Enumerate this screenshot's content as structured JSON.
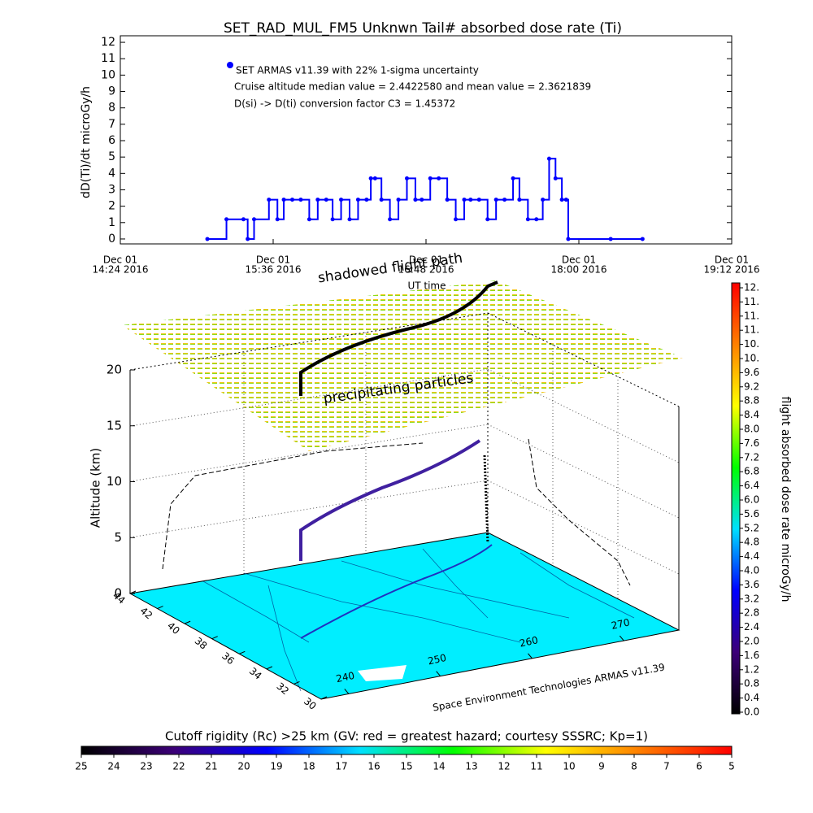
{
  "chart_data": [
    {
      "type": "line",
      "title": "SET_RAD_MUL_FM5 Unknwn Tail#  absorbed dose rate (Ti)",
      "y_label": "dD(Ti)/dt microGy/h",
      "x_label": "UT time",
      "annotations": [
        "Cruise altitude median value = 2.4422580 and mean value = 2.3621839",
        "D(si) -> D(ti) conversion factor C3 = 1.45372"
      ],
      "x": [
        "15:05",
        "15:14",
        "15:22",
        "15:24",
        "15:27",
        "15:34",
        "15:38",
        "15:41",
        "15:45",
        "15:49",
        "15:53",
        "15:57",
        "16:01",
        "16:04",
        "16:08",
        "16:12",
        "16:16",
        "16:20",
        "16:22",
        "16:24",
        "16:27",
        "16:31",
        "16:35",
        "16:39",
        "16:43",
        "16:46",
        "16:50",
        "16:54",
        "16:58",
        "17:02",
        "17:06",
        "17:09",
        "17:13",
        "17:17",
        "17:21",
        "17:25",
        "17:29",
        "17:32",
        "17:36",
        "17:40",
        "17:43",
        "17:46",
        "17:49",
        "17:52",
        "17:54",
        "17:55",
        "18:15",
        "18:30"
      ],
      "series": [
        {
          "name": "SET ARMAS v11.39 with 22% 1-sigma uncertainty",
          "color": "#0000ff",
          "values": [
            0,
            1.2,
            1.2,
            0,
            1.2,
            2.4,
            1.2,
            2.4,
            2.4,
            2.4,
            1.2,
            2.4,
            2.4,
            1.2,
            2.4,
            1.2,
            2.4,
            2.4,
            3.7,
            3.7,
            2.4,
            1.2,
            2.4,
            3.7,
            2.4,
            2.4,
            3.7,
            3.7,
            2.4,
            1.2,
            2.4,
            2.4,
            2.4,
            1.2,
            2.4,
            2.4,
            3.7,
            2.4,
            1.2,
            1.2,
            2.4,
            4.9,
            3.7,
            2.4,
            2.4,
            0,
            0,
            0
          ]
        }
      ],
      "xlim": [
        "14:24",
        "19:12"
      ],
      "xticks": [
        {
          "value": "14:24",
          "label": [
            "Dec 01",
            "14:24 2016"
          ]
        },
        {
          "value": "15:36",
          "label": [
            "Dec 01",
            "15:36 2016"
          ]
        },
        {
          "value": "16:48",
          "label": [
            "Dec 01",
            "16:48 2016"
          ]
        },
        {
          "value": "18:00",
          "label": [
            "Dec 01",
            "18:00 2016"
          ]
        },
        {
          "value": "19:12",
          "label": [
            "Dec 01",
            "19:12 2016"
          ]
        }
      ],
      "ylim": [
        -0.3,
        12.4
      ],
      "yticks": [
        0,
        1,
        2,
        3,
        4,
        5,
        6,
        7,
        8,
        9,
        10,
        11,
        12
      ]
    },
    {
      "type": "surface3d",
      "z_label": "Altitude (km)",
      "zlim": [
        0,
        20
      ],
      "zticks": [
        0,
        5,
        10,
        15,
        20
      ],
      "latlim": [
        44,
        30
      ],
      "lat_ticks": [
        44,
        42,
        40,
        38,
        36,
        34,
        32,
        30
      ],
      "lonlim": [
        237,
        276
      ],
      "lon_ticks": [
        240,
        250,
        260,
        270
      ],
      "annotations": [
        "shadowed flight path",
        "precipitating particles",
        "Space Environment Technologies ARMAS v11.39"
      ],
      "colors": [
        "#000000",
        "#3c0078",
        "#0000ff",
        "#00e0ff",
        "#00ff00",
        "#ffff00",
        "#ff8000",
        "#ff0000"
      ],
      "colorbar": {
        "label": "flight absorbed dose rate microGy/h",
        "lim": [
          0,
          12
        ],
        "ticks": [
          {
            "value": 0,
            "label": "0.0"
          },
          {
            "value": 0.4,
            "label": "0.4"
          },
          {
            "value": 0.8,
            "label": "0.8"
          },
          {
            "value": 1.2,
            "label": "1.2"
          },
          {
            "value": 1.6,
            "label": "1.6"
          },
          {
            "value": 2,
            "label": "2.0"
          },
          {
            "value": 2.4,
            "label": "2.4"
          },
          {
            "value": 2.8,
            "label": "2.8"
          },
          {
            "value": 3.2,
            "label": "3.2"
          },
          {
            "value": 3.6,
            "label": "3.6"
          },
          {
            "value": 4,
            "label": "4.0"
          },
          {
            "value": 4.4,
            "label": "4.4"
          },
          {
            "value": 4.8,
            "label": "4.8"
          },
          {
            "value": 5.2,
            "label": "5.2"
          },
          {
            "value": 5.6,
            "label": "5.6"
          },
          {
            "value": 6,
            "label": "6.0"
          },
          {
            "value": 6.4,
            "label": "6.4"
          },
          {
            "value": 6.8,
            "label": "6.8"
          },
          {
            "value": 7.2,
            "label": "7.2"
          },
          {
            "value": 7.6,
            "label": "7.6"
          },
          {
            "value": 8,
            "label": "8.0"
          },
          {
            "value": 8.4,
            "label": "8.4"
          },
          {
            "value": 8.8,
            "label": "8.8"
          },
          {
            "value": 9.2,
            "label": "9.2"
          },
          {
            "value": 9.6,
            "label": "9.6"
          },
          {
            "value": 10,
            "label": "10."
          },
          {
            "value": 10.4,
            "label": "10."
          },
          {
            "value": 10.8,
            "label": "11."
          },
          {
            "value": 11.2,
            "label": "11."
          },
          {
            "value": 11.6,
            "label": "11."
          },
          {
            "value": 12,
            "label": "12."
          }
        ]
      },
      "colorbar2": {
        "label": "Cutoff rigidity (Rc) >25 km (GV: red = greatest hazard; courtesy SSSRC; Kp=1)",
        "lim": [
          25,
          5
        ],
        "ticks": [
          25,
          24,
          23,
          22,
          21,
          20,
          19,
          18,
          17,
          16,
          15,
          14,
          13,
          12,
          11,
          10,
          9,
          8,
          7,
          6,
          5
        ]
      }
    }
  ]
}
